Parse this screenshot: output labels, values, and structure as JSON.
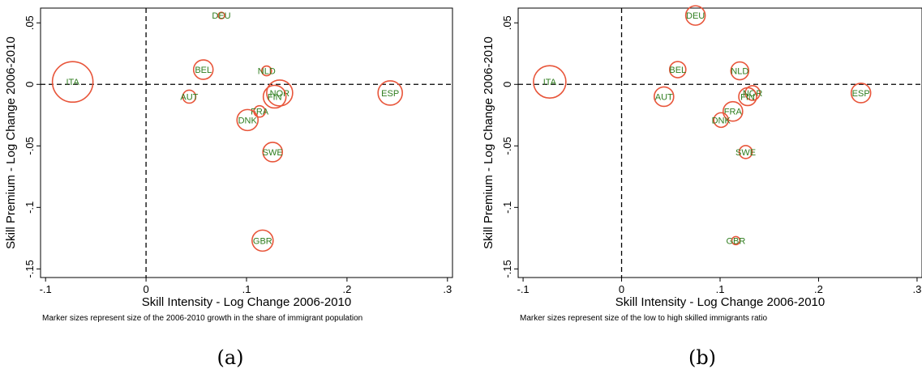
{
  "chart_data": [
    {
      "type": "scatter",
      "panel_label": "(a)",
      "xlabel": "Skill Intensity - Log Change 2006-2010",
      "ylabel": "Skill Premium - Log Change 2006-2010",
      "note": "Marker sizes represent size of the 2006-2010 growth in the share of immigrant population",
      "xlim": [
        -0.105,
        0.305
      ],
      "ylim": [
        -0.157,
        0.062
      ],
      "xticks": [
        -0.1,
        0,
        0.1,
        0.2,
        0.3
      ],
      "xtick_labels": [
        "-.1",
        "0",
        ".1",
        ".2",
        ".3"
      ],
      "yticks": [
        0.05,
        0,
        -0.05,
        -0.1,
        -0.15
      ],
      "ytick_labels": [
        ".05",
        "0",
        "-.05",
        "-.1",
        "-.15"
      ],
      "reference_lines": {
        "x": 0,
        "y": 0
      },
      "marker_color": "#e8553a",
      "label_color": "#2e7d1e",
      "points": [
        {
          "label": "ITA",
          "x": -0.073,
          "y": 0.002,
          "size": 25
        },
        {
          "label": "DEU",
          "x": 0.075,
          "y": 0.056,
          "size": 4
        },
        {
          "label": "BEL",
          "x": 0.057,
          "y": 0.012,
          "size": 12
        },
        {
          "label": "NLD",
          "x": 0.12,
          "y": 0.011,
          "size": 6
        },
        {
          "label": "AUT",
          "x": 0.043,
          "y": -0.01,
          "size": 8
        },
        {
          "label": "NOR",
          "x": 0.133,
          "y": -0.007,
          "size": 16
        },
        {
          "label": "FIN",
          "x": 0.128,
          "y": -0.01,
          "size": 14
        },
        {
          "label": "FRA",
          "x": 0.113,
          "y": -0.022,
          "size": 7
        },
        {
          "label": "DNK",
          "x": 0.101,
          "y": -0.029,
          "size": 13
        },
        {
          "label": "SWE",
          "x": 0.126,
          "y": -0.055,
          "size": 12
        },
        {
          "label": "GBR",
          "x": 0.116,
          "y": -0.127,
          "size": 13
        },
        {
          "label": "ESP",
          "x": 0.243,
          "y": -0.007,
          "size": 15
        }
      ]
    },
    {
      "type": "scatter",
      "panel_label": "(b)",
      "xlabel": "Skill Intensity - Log Change 2006-2010",
      "ylabel": "Skill Premium - Log Change 2006-2010",
      "note": "Marker sizes represent size of the low to high skilled immigrants ratio",
      "xlim": [
        -0.105,
        0.305
      ],
      "ylim": [
        -0.157,
        0.062
      ],
      "xticks": [
        -0.1,
        0,
        0.1,
        0.2,
        0.3
      ],
      "xtick_labels": [
        "-.1",
        "0",
        ".1",
        ".2",
        ".3"
      ],
      "yticks": [
        0.05,
        0,
        -0.05,
        -0.1,
        -0.15
      ],
      "ytick_labels": [
        ".05",
        "0",
        "-.05",
        "-.1",
        "-.15"
      ],
      "reference_lines": {
        "x": 0,
        "y": 0
      },
      "marker_color": "#e8553a",
      "label_color": "#2e7d1e",
      "points": [
        {
          "label": "ITA",
          "x": -0.073,
          "y": 0.002,
          "size": 20
        },
        {
          "label": "DEU",
          "x": 0.075,
          "y": 0.056,
          "size": 12
        },
        {
          "label": "BEL",
          "x": 0.057,
          "y": 0.012,
          "size": 10
        },
        {
          "label": "NLD",
          "x": 0.12,
          "y": 0.011,
          "size": 11
        },
        {
          "label": "AUT",
          "x": 0.043,
          "y": -0.01,
          "size": 12
        },
        {
          "label": "NOR",
          "x": 0.133,
          "y": -0.007,
          "size": 9
        },
        {
          "label": "FIN",
          "x": 0.128,
          "y": -0.01,
          "size": 11
        },
        {
          "label": "FRA",
          "x": 0.113,
          "y": -0.022,
          "size": 12
        },
        {
          "label": "DNK",
          "x": 0.101,
          "y": -0.029,
          "size": 9
        },
        {
          "label": "SWE",
          "x": 0.126,
          "y": -0.055,
          "size": 8
        },
        {
          "label": "GBR",
          "x": 0.116,
          "y": -0.127,
          "size": 5
        },
        {
          "label": "ESP",
          "x": 0.243,
          "y": -0.007,
          "size": 12
        }
      ]
    }
  ]
}
